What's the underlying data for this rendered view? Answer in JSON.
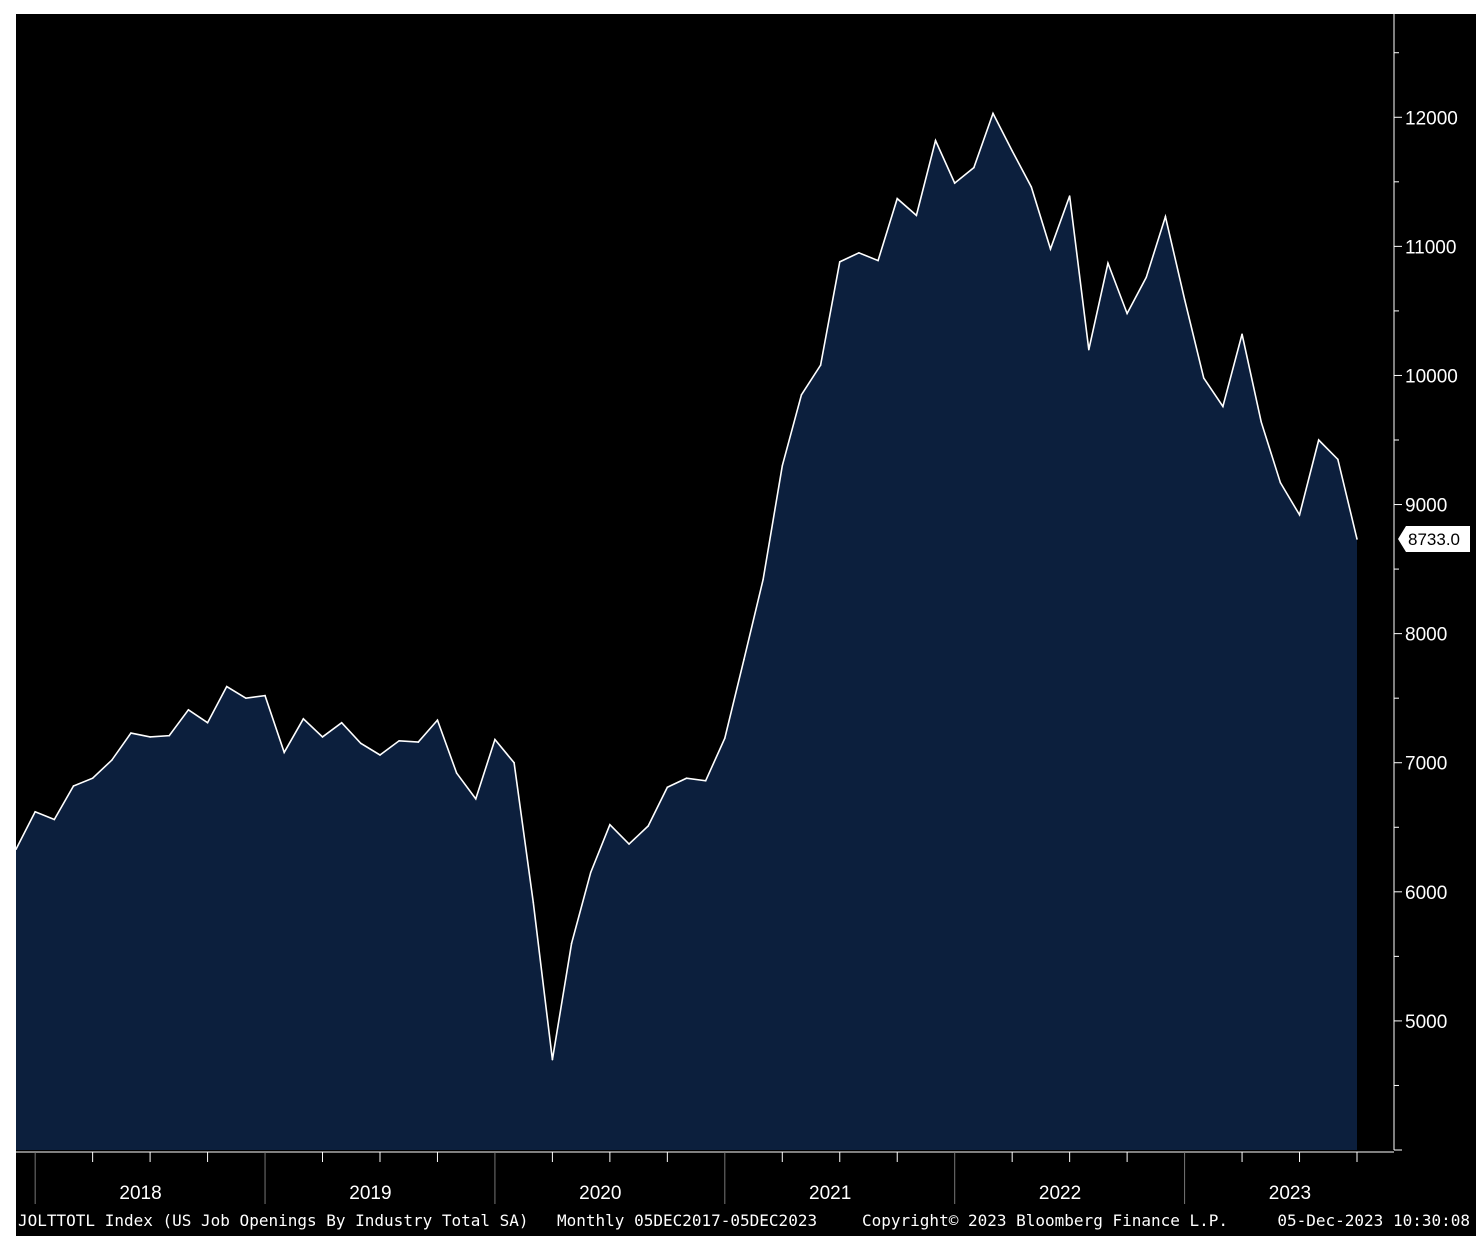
{
  "chart_data": {
    "type": "area",
    "x_start": "2017-12",
    "frequency": "Monthly",
    "values": [
      6330,
      6620,
      6560,
      6820,
      6880,
      7020,
      7230,
      7200,
      7210,
      7410,
      7310,
      7590,
      7500,
      7520,
      7080,
      7340,
      7200,
      7310,
      7150,
      7060,
      7170,
      7160,
      7330,
      6920,
      6720,
      7180,
      7000,
      5920,
      4700,
      5600,
      6150,
      6520,
      6370,
      6510,
      6810,
      6880,
      6860,
      7190,
      7800,
      8420,
      9300,
      9850,
      10080,
      10880,
      10950,
      10890,
      11370,
      11240,
      11820,
      11490,
      11610,
      12030,
      11740,
      11460,
      10980,
      11390,
      10200,
      10870,
      10480,
      10760,
      11230,
      10590,
      9980,
      9760,
      10320,
      9640,
      9170,
      8920,
      9500,
      9350,
      8733
    ],
    "x_tick_labels": [
      "2018",
      "2019",
      "2020",
      "2021",
      "2022",
      "2023"
    ],
    "y_tick_labels": [
      "5000",
      "6000",
      "7000",
      "8000",
      "9000",
      "10000",
      "11000",
      "12000"
    ],
    "ylim": [
      4000,
      12800
    ],
    "last_value_label": "8733.0",
    "footer": {
      "ticker": "JOLTTOTL Index (US Job Openings By Industry Total SA)",
      "range": "Monthly 05DEC2017-05DEC2023",
      "copyright": "Copyright© 2023 Bloomberg Finance L.P.",
      "timestamp": "05-Dec-2023 10:30:08"
    },
    "colors": {
      "background": "#000000",
      "area_fill": "#0c1f3d",
      "line": "#ffffff",
      "text": "#ffffff"
    },
    "grid": false
  }
}
